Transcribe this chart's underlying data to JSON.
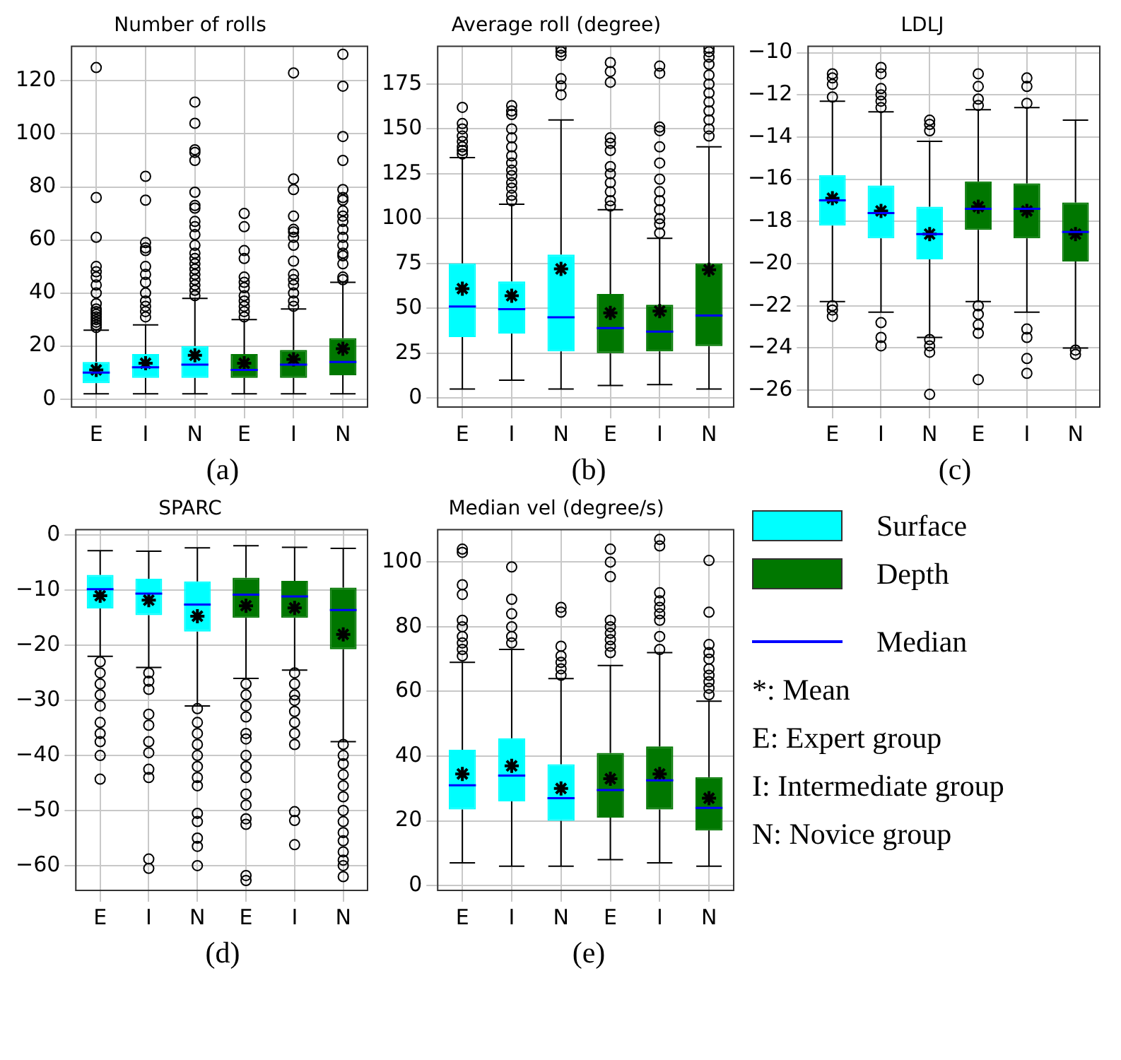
{
  "chart_data": [
    {
      "type": "box",
      "title": "Number of rolls",
      "categories": [
        "E",
        "I",
        "N",
        "E",
        "I",
        "N"
      ],
      "ylim": [
        -3,
        133
      ],
      "yticks": [
        0,
        20,
        40,
        60,
        80,
        100,
        120
      ],
      "grid": true,
      "legend": "bottom right",
      "annotations": [
        "(a)"
      ],
      "series": [
        {
          "name": "Surface",
          "color": "#00ffff",
          "boxes": [
            {
              "low": 2,
              "q1": 6,
              "median": 10,
              "q3": 14,
              "high": 26,
              "mean": 11,
              "outliers": [
                27,
                28,
                29,
                30,
                31,
                32,
                33,
                34,
                36,
                40,
                43,
                46,
                48,
                50,
                61,
                76,
                125
              ]
            },
            {
              "low": 2,
              "q1": 8,
              "median": 12,
              "q3": 17,
              "high": 28,
              "mean": 13.5,
              "outliers": [
                31,
                33,
                35,
                37,
                40,
                44,
                47,
                50,
                56,
                57,
                59,
                75,
                84
              ]
            },
            {
              "low": 2,
              "q1": 8,
              "median": 13,
              "q3": 20,
              "high": 38,
              "mean": 16.5,
              "outliers": [
                39,
                41,
                43,
                45,
                47,
                49,
                51,
                53,
                55,
                58,
                62,
                65,
                67,
                72,
                73,
                78,
                90,
                93,
                94,
                104,
                112
              ]
            },
            null,
            null,
            null
          ]
        },
        {
          "name": "Depth",
          "color": "#007700",
          "boxes": [
            null,
            null,
            null,
            {
              "low": 2,
              "q1": 8,
              "median": 11,
              "q3": 17,
              "high": 30,
              "mean": 13.5,
              "outliers": [
                31,
                33,
                35,
                37,
                39,
                42,
                44,
                46,
                53,
                56,
                65,
                70
              ]
            },
            {
              "low": 2,
              "q1": 8,
              "median": 13,
              "q3": 18.5,
              "high": 34,
              "mean": 15,
              "outliers": [
                35,
                37,
                40,
                43,
                45,
                47,
                52,
                58,
                61,
                63,
                64,
                69,
                79,
                83,
                123
              ]
            },
            {
              "low": 2,
              "q1": 9,
              "median": 14,
              "q3": 23,
              "high": 44,
              "mean": 19,
              "outliers": [
                45,
                46,
                51,
                54,
                55,
                58,
                61,
                64,
                67,
                69,
                71,
                75,
                76,
                79,
                90,
                99,
                118,
                130
              ]
            }
          ]
        }
      ]
    },
    {
      "type": "box",
      "title": "Average roll (degree)",
      "categories": [
        "E",
        "I",
        "N",
        "E",
        "I",
        "N"
      ],
      "ylim": [
        -5,
        196
      ],
      "yticks": [
        0,
        25,
        50,
        75,
        100,
        125,
        150,
        175
      ],
      "grid": true,
      "annotations": [
        "(b)"
      ],
      "series": [
        {
          "color": "#00ffff",
          "boxes": [
            {
              "low": 5,
              "q1": 34,
              "median": 51,
              "q3": 75,
              "high": 134,
              "mean": 61,
              "outliers": [
                136,
                138,
                140,
                143,
                146,
                150,
                153,
                162
              ]
            },
            {
              "low": 10,
              "q1": 36,
              "median": 49.5,
              "q3": 65,
              "high": 108,
              "mean": 57,
              "outliers": [
                110,
                113,
                117,
                120,
                124,
                127,
                131,
                135,
                140,
                145,
                150,
                158,
                160,
                163
              ]
            },
            {
              "low": 5,
              "q1": 26,
              "median": 45,
              "q3": 80,
              "high": 155,
              "mean": 72,
              "outliers": [
                169,
                174,
                178,
                191,
                193,
                195
              ]
            },
            null,
            null,
            null
          ]
        },
        {
          "color": "#007700",
          "boxes": [
            null,
            null,
            null,
            {
              "low": 7,
              "q1": 25,
              "median": 39,
              "q3": 58,
              "high": 105,
              "mean": 47.5,
              "outliers": [
                107,
                110,
                115,
                120,
                125,
                129,
                138,
                142,
                145,
                176,
                182,
                187
              ]
            },
            {
              "low": 7.5,
              "q1": 26,
              "median": 37,
              "q3": 52,
              "high": 89,
              "mean": 48.5,
              "outliers": [
                92,
                97,
                100,
                105,
                110,
                115,
                122,
                131,
                140,
                149,
                151,
                181,
                185
              ]
            },
            {
              "low": 5,
              "q1": 29,
              "median": 46,
              "q3": 75,
              "high": 140,
              "mean": 71.5,
              "outliers": [
                146,
                150,
                155,
                160,
                165,
                170,
                175,
                180,
                186,
                190,
                193,
                195
              ]
            }
          ]
        }
      ]
    },
    {
      "type": "box",
      "title": "LDLJ",
      "categories": [
        "E",
        "I",
        "N",
        "E",
        "I",
        "N"
      ],
      "ylim": [
        -26.8,
        -9.7
      ],
      "yticks": [
        -26,
        -24,
        -22,
        -20,
        -18,
        -16,
        -14,
        -12,
        -10
      ],
      "grid": true,
      "annotations": [
        "(c)"
      ],
      "series": [
        {
          "color": "#00ffff",
          "boxes": [
            {
              "low": -21.8,
              "q1": -18.2,
              "median": -17,
              "q3": -15.8,
              "high": -12.3,
              "mean": -16.9,
              "outliers": [
                -11,
                -11.2,
                -11.5,
                -12.1,
                -22,
                -22.2,
                -22.5
              ]
            },
            {
              "low": -22.3,
              "q1": -18.8,
              "median": -17.6,
              "q3": -16.3,
              "high": -12.8,
              "mean": -17.5,
              "outliers": [
                -10.7,
                -11,
                -11.7,
                -12,
                -12.3,
                -12.6,
                -22.8,
                -23.5,
                -23.9
              ]
            },
            {
              "low": -23.5,
              "q1": -19.8,
              "median": -18.6,
              "q3": -17.3,
              "high": -14.2,
              "mean": -18.6,
              "outliers": [
                -13.2,
                -13.4,
                -13.7,
                -23.6,
                -23.9,
                -24.2,
                -26.2
              ]
            },
            null,
            null,
            null
          ]
        },
        {
          "color": "#007700",
          "boxes": [
            null,
            null,
            null,
            {
              "low": -21.8,
              "q1": -18.4,
              "median": -17.4,
              "q3": -16.1,
              "high": -12.7,
              "mean": -17.3,
              "outliers": [
                -11,
                -11.6,
                -12.2,
                -12.5,
                -22,
                -22.4,
                -22.9,
                -23.3,
                -25.5
              ]
            },
            {
              "low": -22.3,
              "q1": -18.8,
              "median": -17.4,
              "q3": -16.2,
              "high": -12.6,
              "mean": -17.5,
              "outliers": [
                -11.2,
                -11.6,
                -12.4,
                -23.1,
                -23.5,
                -24.5,
                -25.2
              ]
            },
            {
              "low": -24,
              "q1": -19.9,
              "median": -18.5,
              "q3": -17.1,
              "high": -13.2,
              "mean": -18.6,
              "outliers": [
                -24.1,
                -24.3
              ]
            }
          ]
        }
      ]
    },
    {
      "type": "box",
      "title": "SPARC",
      "categories": [
        "E",
        "I",
        "N",
        "E",
        "I",
        "N"
      ],
      "ylim": [
        -64.5,
        1
      ],
      "yticks": [
        -60,
        -50,
        -40,
        -30,
        -20,
        -10,
        0
      ],
      "grid": true,
      "annotations": [
        "(d)"
      ],
      "series": [
        {
          "color": "#00ffff",
          "boxes": [
            {
              "low": -22,
              "q1": -13.3,
              "median": -9.8,
              "q3": -7.2,
              "high": -2.8,
              "mean": -11,
              "outliers": [
                -23,
                -25,
                -27,
                -29,
                -31,
                -34,
                -36,
                -37.5,
                -40,
                -44.3
              ]
            },
            {
              "low": -24,
              "q1": -14.5,
              "median": -10.6,
              "q3": -7.9,
              "high": -2.9,
              "mean": -11.8,
              "outliers": [
                -25,
                -26.5,
                -28,
                -32.5,
                -34.5,
                -37.5,
                -39.5,
                -42.5,
                -44,
                -58.8,
                -60.5
              ]
            },
            {
              "low": -31,
              "q1": -17.5,
              "median": -12.6,
              "q3": -8.4,
              "high": -2.3,
              "mean": -14.7,
              "outliers": [
                -31.5,
                -34,
                -36,
                -38,
                -40,
                -42,
                -44,
                -45.5,
                -50.5,
                -52,
                -55,
                -56.5,
                -60
              ]
            },
            null,
            null,
            null
          ]
        },
        {
          "color": "#007700",
          "boxes": [
            null,
            null,
            null,
            {
              "low": -26,
              "q1": -15,
              "median": -10.8,
              "q3": -7.7,
              "high": -1.9,
              "mean": -12.8,
              "outliers": [
                -27,
                -29,
                -31,
                -33,
                -36,
                -37,
                -40,
                -42,
                -44,
                -47,
                -49,
                -51.5,
                -52.5,
                -61.8,
                -62.7
              ]
            },
            {
              "low": -24.5,
              "q1": -15,
              "median": -11.1,
              "q3": -8.3,
              "high": -2.2,
              "mean": -13.2,
              "outliers": [
                -25,
                -27,
                -29,
                -30,
                -32,
                -34,
                -36,
                -38,
                -50.2,
                -51.8,
                -56.2
              ]
            },
            {
              "low": -37.5,
              "q1": -20.7,
              "median": -13.6,
              "q3": -9.5,
              "high": -2.4,
              "mean": -18,
              "outliers": [
                -38,
                -40,
                -41.5,
                -43.5,
                -45.5,
                -47.5,
                -50,
                -52,
                -54,
                -55.5,
                -57.5,
                -59,
                -60,
                -62
              ]
            }
          ]
        }
      ]
    },
    {
      "type": "box",
      "title": "Median vel (degree/s)",
      "categories": [
        "E",
        "I",
        "N",
        "E",
        "I",
        "N"
      ],
      "ylim": [
        -1.5,
        110
      ],
      "yticks": [
        0,
        20,
        40,
        60,
        80,
        100
      ],
      "grid": true,
      "annotations": [
        "(e)"
      ],
      "series": [
        {
          "color": "#00ffff",
          "boxes": [
            {
              "low": 7,
              "q1": 23.5,
              "median": 31,
              "q3": 42,
              "high": 69,
              "mean": 34.5,
              "outliers": [
                71,
                73,
                75,
                77,
                80,
                82,
                90,
                93,
                103,
                104
              ]
            },
            {
              "low": 6,
              "q1": 26,
              "median": 34,
              "q3": 45.5,
              "high": 73,
              "mean": 37,
              "outliers": [
                75,
                77,
                80,
                84,
                88.5,
                98.5
              ]
            },
            {
              "low": 6,
              "q1": 20,
              "median": 27,
              "q3": 37.5,
              "high": 64,
              "mean": 30,
              "outliers": [
                65,
                67,
                69,
                71,
                74,
                84.5,
                86
              ]
            },
            null,
            null,
            null
          ]
        },
        {
          "color": "#007700",
          "boxes": [
            null,
            null,
            null,
            {
              "low": 8,
              "q1": 21,
              "median": 29.5,
              "q3": 41,
              "high": 68,
              "mean": 33,
              "outliers": [
                72,
                74,
                76,
                78,
                80,
                82,
                95.5,
                100,
                104
              ]
            },
            {
              "low": 7,
              "q1": 23.5,
              "median": 32.5,
              "q3": 43,
              "high": 72,
              "mean": 34.5,
              "outliers": [
                73,
                77,
                82,
                84,
                86,
                88,
                90.5,
                105,
                107
              ]
            },
            {
              "low": 6,
              "q1": 17,
              "median": 24,
              "q3": 33.5,
              "high": 57,
              "mean": 27,
              "outliers": [
                59,
                61,
                63,
                65,
                67,
                70,
                72,
                74.5,
                84.5,
                100.5
              ]
            }
          ]
        }
      ]
    },
    {
      "type": "other",
      "annotations": [
        "Median",
        "*: Mean",
        "E: Expert group",
        "I: Intermediate group",
        "N: Novice group"
      ]
    }
  ]
}
